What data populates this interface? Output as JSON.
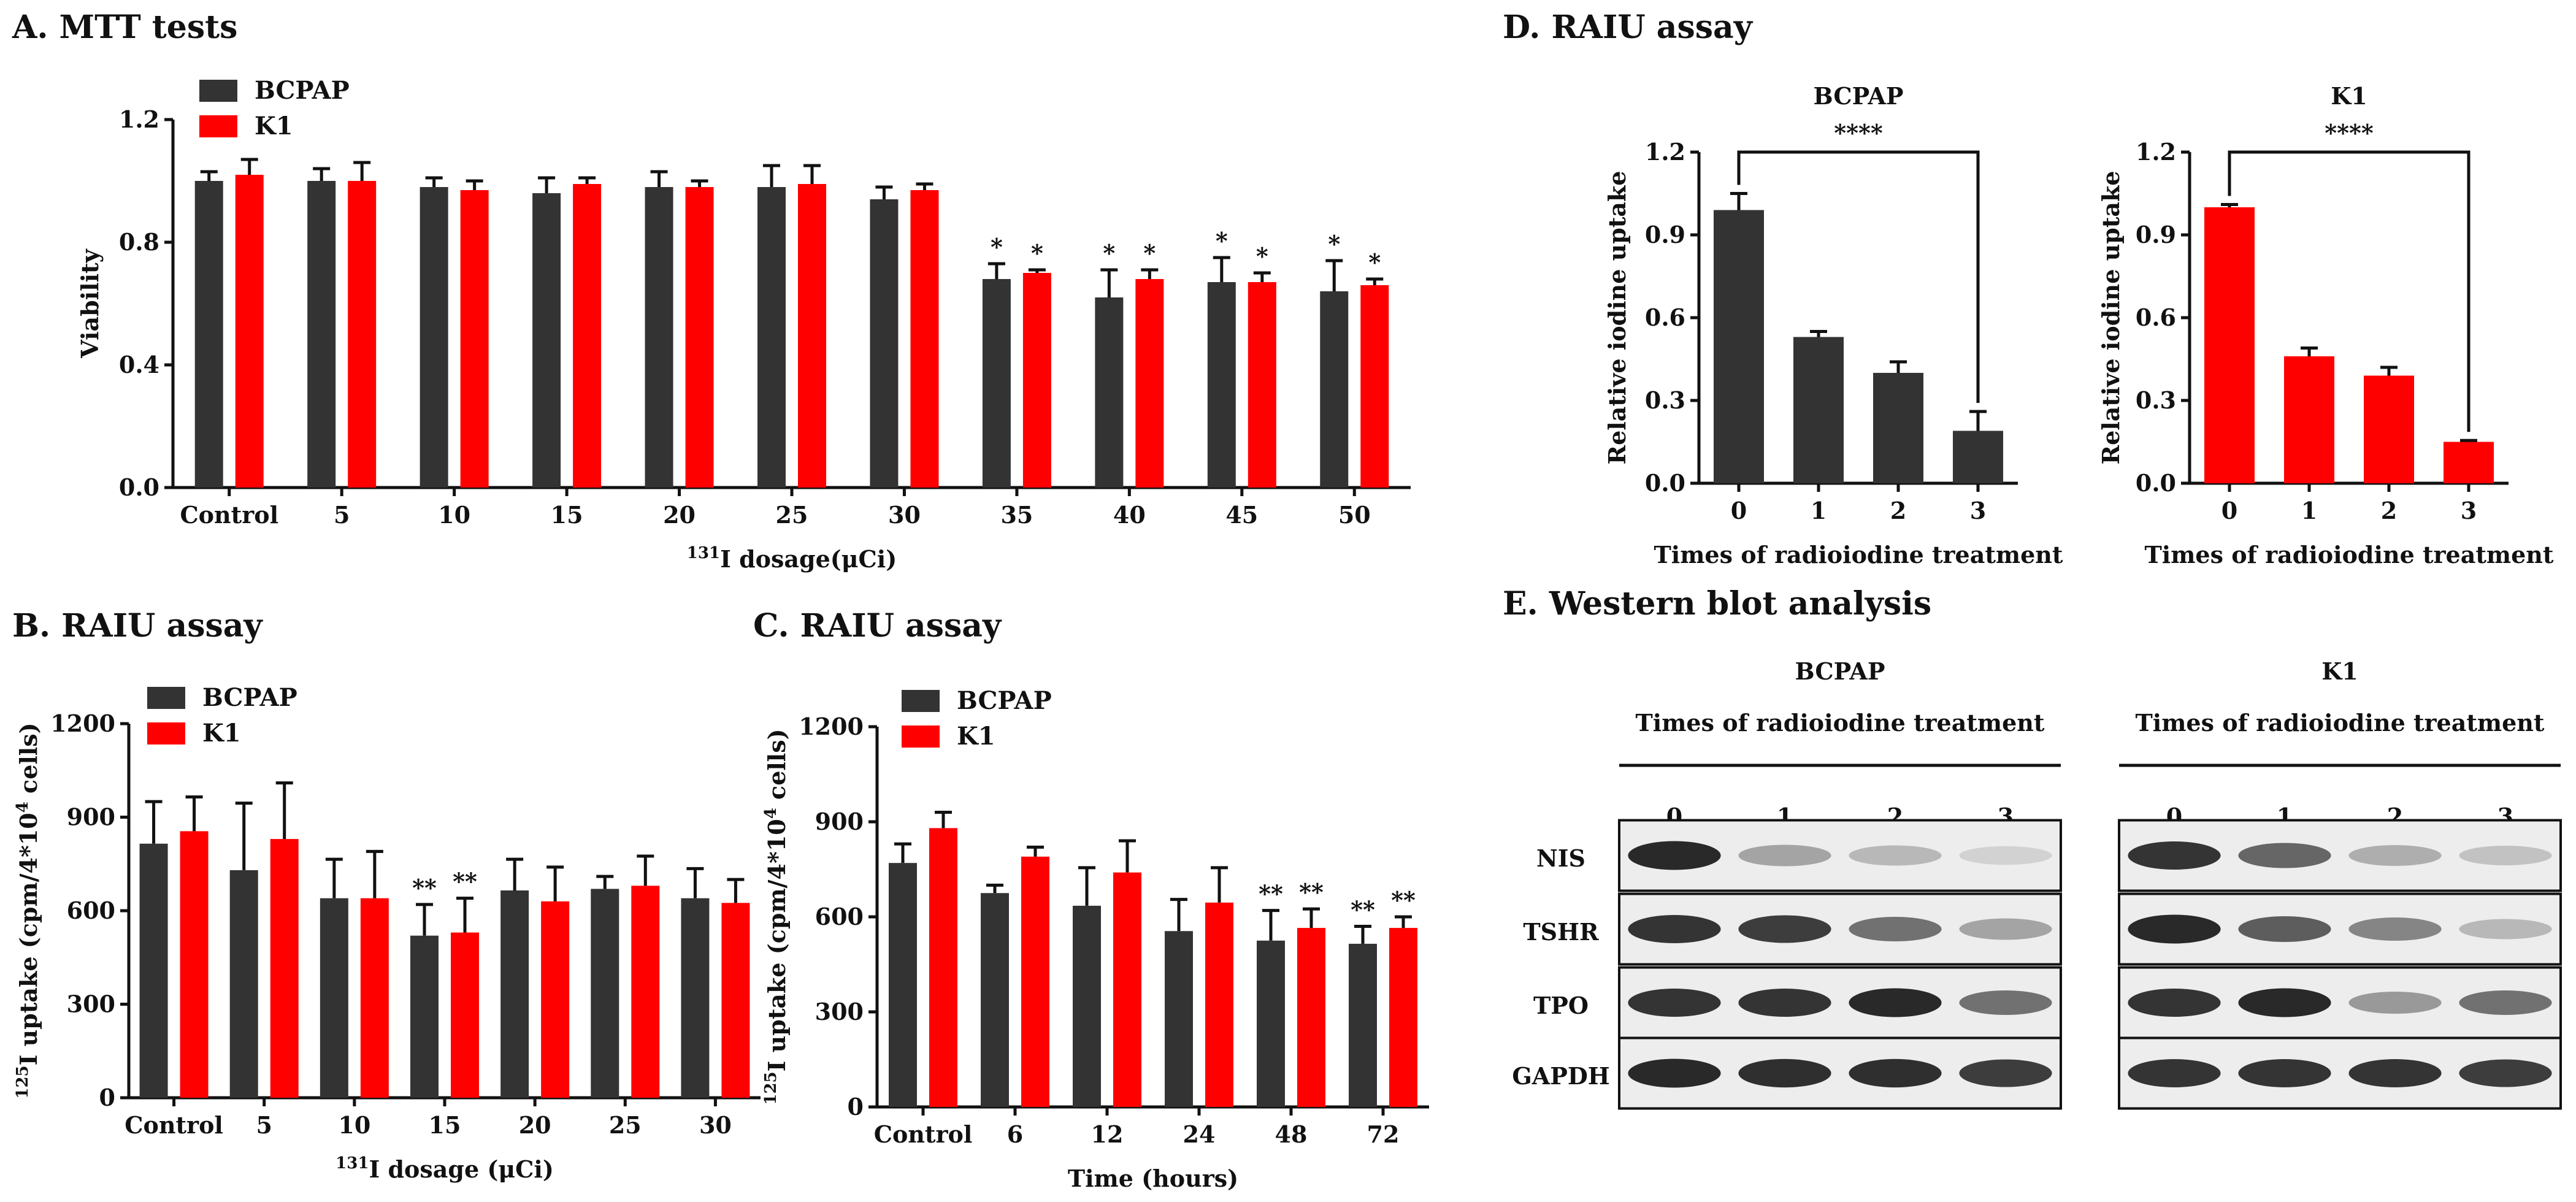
{
  "colors": {
    "bcpap": "#333333",
    "k1": "#ff0000",
    "axis": "#111111"
  },
  "chart_data": [
    {
      "id": "A",
      "panel_title": "A. MTT tests",
      "type": "bar",
      "ylabel": "Viability",
      "xlabel_sup": "131",
      "xlabel_main": "I dosage(μCi)",
      "ylim": [
        0,
        1.2
      ],
      "yticks": [
        0.0,
        0.4,
        0.8,
        1.2
      ],
      "ytick_labels": [
        "0.0",
        "0.4",
        "0.8",
        "1.2"
      ],
      "legend_location": "top-left",
      "categories": [
        "Control",
        "5",
        "10",
        "15",
        "20",
        "25",
        "30",
        "35",
        "40",
        "45",
        "50"
      ],
      "series": [
        {
          "name": "BCPAP",
          "color_key": "bcpap",
          "values": [
            1.0,
            1.0,
            0.98,
            0.96,
            0.98,
            0.98,
            0.94,
            0.68,
            0.62,
            0.67,
            0.64
          ],
          "errors": [
            0.03,
            0.04,
            0.03,
            0.05,
            0.05,
            0.07,
            0.04,
            0.05,
            0.09,
            0.08,
            0.1
          ],
          "annotations": [
            "",
            "",
            "",
            "",
            "",
            "",
            "",
            "*",
            "*",
            "*",
            "*"
          ]
        },
        {
          "name": "K1",
          "color_key": "k1",
          "values": [
            1.02,
            1.0,
            0.97,
            0.99,
            0.98,
            0.99,
            0.97,
            0.7,
            0.68,
            0.67,
            0.66
          ],
          "errors": [
            0.05,
            0.06,
            0.03,
            0.02,
            0.02,
            0.06,
            0.02,
            0.01,
            0.03,
            0.03,
            0.02
          ],
          "annotations": [
            "",
            "",
            "",
            "",
            "",
            "",
            "",
            "*",
            "*",
            "*",
            "*"
          ]
        }
      ]
    },
    {
      "id": "B",
      "panel_title": "B. RAIU assay",
      "type": "bar",
      "ylabel_sup": "125",
      "ylabel_main": "I uptake (cpm/4*10",
      "ylabel_sup2": "4",
      "ylabel_tail": " cells)",
      "xlabel_sup": "131",
      "xlabel_main": "I dosage (μCi)",
      "ylim": [
        0,
        1200
      ],
      "yticks": [
        0,
        300,
        600,
        900,
        1200
      ],
      "ytick_labels": [
        "0",
        "300",
        "600",
        "900",
        "1200"
      ],
      "legend_location": "top-left",
      "categories": [
        "Control",
        "5",
        "10",
        "15",
        "20",
        "25",
        "30"
      ],
      "series": [
        {
          "name": "BCPAP",
          "color_key": "bcpap",
          "values": [
            815,
            730,
            640,
            520,
            665,
            670,
            640
          ],
          "errors": [
            135,
            215,
            125,
            100,
            100,
            40,
            95
          ],
          "annotations": [
            "",
            "",
            "",
            "**",
            "",
            "",
            ""
          ]
        },
        {
          "name": "K1",
          "color_key": "k1",
          "values": [
            855,
            830,
            640,
            530,
            630,
            680,
            625
          ],
          "errors": [
            110,
            180,
            150,
            110,
            110,
            95,
            75
          ],
          "annotations": [
            "",
            "",
            "",
            "**",
            "",
            "",
            ""
          ]
        }
      ]
    },
    {
      "id": "C",
      "panel_title": "C. RAIU assay",
      "type": "bar",
      "ylabel_sup": "125",
      "ylabel_main": "I uptake (cpm/4*10",
      "ylabel_sup2": "4",
      "ylabel_tail": " cells)",
      "xlabel": "Time (hours)",
      "ylim": [
        0,
        1200
      ],
      "yticks": [
        0,
        300,
        600,
        900,
        1200
      ],
      "ytick_labels": [
        "0",
        "300",
        "600",
        "900",
        "1200"
      ],
      "legend_location": "top-left",
      "categories": [
        "Control",
        "6",
        "12",
        "24",
        "48",
        "72"
      ],
      "series": [
        {
          "name": "BCPAP",
          "color_key": "bcpap",
          "values": [
            770,
            675,
            635,
            555,
            525,
            515
          ],
          "errors": [
            60,
            25,
            120,
            100,
            95,
            55
          ],
          "annotations": [
            "",
            "",
            "",
            "",
            "**",
            "**"
          ]
        },
        {
          "name": "K1",
          "color_key": "k1",
          "values": [
            880,
            790,
            740,
            645,
            565,
            565
          ],
          "errors": [
            50,
            30,
            100,
            110,
            60,
            35
          ],
          "annotations": [
            "",
            "",
            "",
            "",
            "**",
            "**"
          ]
        }
      ]
    },
    {
      "id": "D1",
      "panel_title": "D. RAIU assay",
      "subtitle": "BCPAP",
      "type": "bar",
      "ylabel": "Relative iodine uptake",
      "xlabel": "Times of radioiodine treatment",
      "ylim": [
        0,
        1.2
      ],
      "yticks": [
        0.0,
        0.3,
        0.6,
        0.9,
        1.2
      ],
      "ytick_labels": [
        "0.0",
        "0.3",
        "0.6",
        "0.9",
        "1.2"
      ],
      "categories": [
        "0",
        "1",
        "2",
        "3"
      ],
      "series": [
        {
          "name": "BCPAP",
          "color_key": "bcpap",
          "values": [
            0.99,
            0.53,
            0.4,
            0.19
          ],
          "errors": [
            0.06,
            0.02,
            0.04,
            0.07
          ]
        }
      ],
      "bracket": {
        "from": 0,
        "to": 3,
        "label": "****"
      }
    },
    {
      "id": "D2",
      "subtitle": "K1",
      "type": "bar",
      "ylabel": "Relative iodine uptake",
      "xlabel": "Times of radioiodine treatment",
      "ylim": [
        0,
        1.2
      ],
      "yticks": [
        0.0,
        0.3,
        0.6,
        0.9,
        1.2
      ],
      "ytick_labels": [
        "0.0",
        "0.3",
        "0.6",
        "0.9",
        "1.2"
      ],
      "categories": [
        "0",
        "1",
        "2",
        "3"
      ],
      "series": [
        {
          "name": "K1",
          "color_key": "k1",
          "values": [
            1.0,
            0.46,
            0.39,
            0.15
          ],
          "errors": [
            0.01,
            0.03,
            0.03,
            0.005
          ]
        }
      ],
      "bracket": {
        "from": 0,
        "to": 3,
        "label": "****"
      }
    }
  ],
  "western": {
    "title": "E. Western blot analysis",
    "row_labels": [
      "NIS",
      "TSHR",
      "TPO",
      "GAPDH"
    ],
    "groups": [
      {
        "name": "BCPAP",
        "subtitle": "Times of radioiodine treatment",
        "lanes": [
          "0",
          "1",
          "2",
          "3"
        ],
        "intensities": [
          [
            0.95,
            0.35,
            0.25,
            0.12
          ],
          [
            0.9,
            0.85,
            0.6,
            0.35
          ],
          [
            0.9,
            0.9,
            0.95,
            0.6
          ],
          [
            0.95,
            0.92,
            0.92,
            0.85
          ]
        ]
      },
      {
        "name": "K1",
        "subtitle": "Times of radioiodine treatment",
        "lanes": [
          "0",
          "1",
          "2",
          "3"
        ],
        "intensities": [
          [
            0.9,
            0.65,
            0.3,
            0.2
          ],
          [
            0.95,
            0.7,
            0.5,
            0.25
          ],
          [
            0.9,
            0.95,
            0.4,
            0.6
          ],
          [
            0.9,
            0.9,
            0.9,
            0.85
          ]
        ]
      }
    ]
  }
}
